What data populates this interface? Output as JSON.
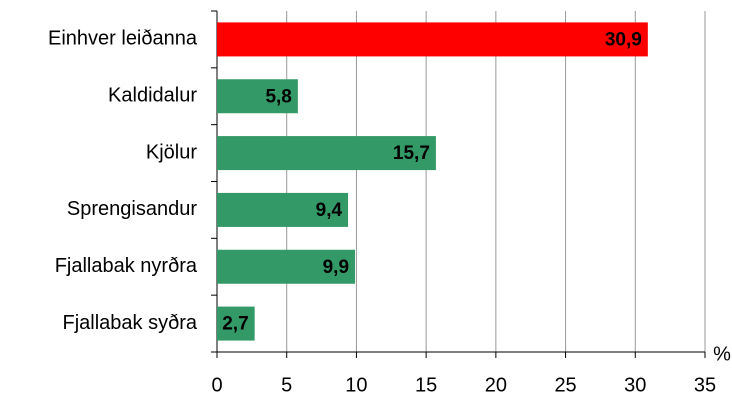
{
  "chart_data": {
    "type": "barh",
    "categories": [
      "Einhver leiðanna",
      "Kaldidalur",
      "Kjölur",
      "Sprengisandur",
      "Fjallabak nyrðra",
      "Fjallabak syðra"
    ],
    "values": [
      30.9,
      5.8,
      15.7,
      9.4,
      9.9,
      2.7
    ],
    "value_labels": [
      "30,9",
      "5,8",
      "15,7",
      "9,4",
      "9,9",
      "2,7"
    ],
    "colors": [
      "#ff0000",
      "#339966",
      "#339966",
      "#339966",
      "#339966",
      "#339966"
    ],
    "xlabel": "%",
    "xlim": [
      0,
      35
    ],
    "xticks": [
      0,
      5,
      10,
      15,
      20,
      25,
      30,
      35
    ],
    "grid": true
  }
}
